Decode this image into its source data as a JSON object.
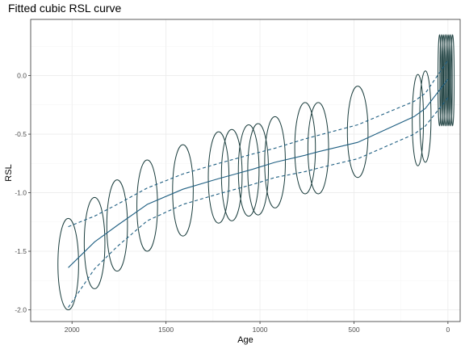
{
  "chart_data": {
    "type": "line",
    "title": "Fitted cubic RSL curve",
    "xlabel": "Age",
    "ylabel": "RSL",
    "x_reversed": true,
    "xlim": [
      2220,
      -65
    ],
    "ylim": [
      -2.1,
      0.48
    ],
    "x_ticks": [
      2000,
      1500,
      1000,
      500,
      0
    ],
    "x_tick_labels": [
      "2000",
      "1500",
      "1000",
      "500",
      "0"
    ],
    "y_ticks": [
      0.0,
      -0.5,
      -1.0,
      -1.5,
      -2.0
    ],
    "y_tick_labels": [
      "0.0",
      "-0.5",
      "-1.0",
      "-1.5",
      "-2.0"
    ],
    "grid": true,
    "colors": {
      "fit": "#1f5f82",
      "ellipse": "#1a3d3d",
      "grid_major": "#ebebeb",
      "grid_minor": "#f5f5f5",
      "panel_border": "#333333"
    },
    "series": [
      {
        "style": "solid",
        "x": [
          2020,
          1880,
          1760,
          1600,
          1410,
          1220,
          1130,
          1040,
          920,
          760,
          690,
          480,
          180,
          120,
          0
        ],
        "y": [
          -1.64,
          -1.42,
          -1.28,
          -1.1,
          -0.97,
          -0.88,
          -0.84,
          -0.8,
          -0.74,
          -0.68,
          -0.65,
          -0.57,
          -0.35,
          -0.28,
          -0.03
        ]
      },
      {
        "style": "dashed",
        "x": [
          2020,
          1880,
          1760,
          1600,
          1410,
          1220,
          1130,
          1040,
          920,
          760,
          690,
          480,
          180,
          120,
          0
        ],
        "y": [
          -1.29,
          -1.2,
          -1.1,
          -0.96,
          -0.84,
          -0.75,
          -0.71,
          -0.67,
          -0.62,
          -0.54,
          -0.51,
          -0.42,
          -0.22,
          -0.15,
          0.13
        ]
      },
      {
        "style": "dashed",
        "x": [
          2020,
          1880,
          1760,
          1600,
          1410,
          1220,
          1130,
          1040,
          920,
          760,
          690,
          480,
          180,
          120,
          0
        ],
        "y": [
          -1.98,
          -1.65,
          -1.46,
          -1.24,
          -1.1,
          -1.01,
          -0.97,
          -0.93,
          -0.87,
          -0.82,
          -0.79,
          -0.71,
          -0.5,
          -0.43,
          -0.19
        ]
      }
    ],
    "ellipses": [
      {
        "x": 2020,
        "y": -1.61,
        "rx": 55,
        "ry": 0.39
      },
      {
        "x": 1880,
        "y": -1.43,
        "rx": 55,
        "ry": 0.39
      },
      {
        "x": 1760,
        "y": -1.28,
        "rx": 55,
        "ry": 0.39
      },
      {
        "x": 1600,
        "y": -1.11,
        "rx": 55,
        "ry": 0.39
      },
      {
        "x": 1410,
        "y": -0.98,
        "rx": 55,
        "ry": 0.39
      },
      {
        "x": 1220,
        "y": -0.87,
        "rx": 55,
        "ry": 0.39
      },
      {
        "x": 1150,
        "y": -0.85,
        "rx": 55,
        "ry": 0.39
      },
      {
        "x": 1060,
        "y": -0.81,
        "rx": 55,
        "ry": 0.39
      },
      {
        "x": 1010,
        "y": -0.8,
        "rx": 55,
        "ry": 0.39
      },
      {
        "x": 920,
        "y": -0.74,
        "rx": 55,
        "ry": 0.39
      },
      {
        "x": 760,
        "y": -0.62,
        "rx": 55,
        "ry": 0.39
      },
      {
        "x": 690,
        "y": -0.62,
        "rx": 55,
        "ry": 0.39
      },
      {
        "x": 480,
        "y": -0.48,
        "rx": 55,
        "ry": 0.39
      },
      {
        "x": 160,
        "y": -0.38,
        "rx": 30,
        "ry": 0.39
      },
      {
        "x": 120,
        "y": -0.35,
        "rx": 30,
        "ry": 0.39
      },
      {
        "x": 45,
        "y": -0.04,
        "rx": 8,
        "ry": 0.39
      },
      {
        "x": 35,
        "y": -0.04,
        "rx": 8,
        "ry": 0.39
      },
      {
        "x": 25,
        "y": -0.04,
        "rx": 8,
        "ry": 0.39
      },
      {
        "x": 15,
        "y": -0.04,
        "rx": 8,
        "ry": 0.39
      },
      {
        "x": 5,
        "y": -0.04,
        "rx": 8,
        "ry": 0.39
      },
      {
        "x": -5,
        "y": -0.04,
        "rx": 8,
        "ry": 0.39
      },
      {
        "x": -15,
        "y": -0.04,
        "rx": 8,
        "ry": 0.39
      },
      {
        "x": -25,
        "y": -0.04,
        "rx": 8,
        "ry": 0.39
      }
    ]
  }
}
